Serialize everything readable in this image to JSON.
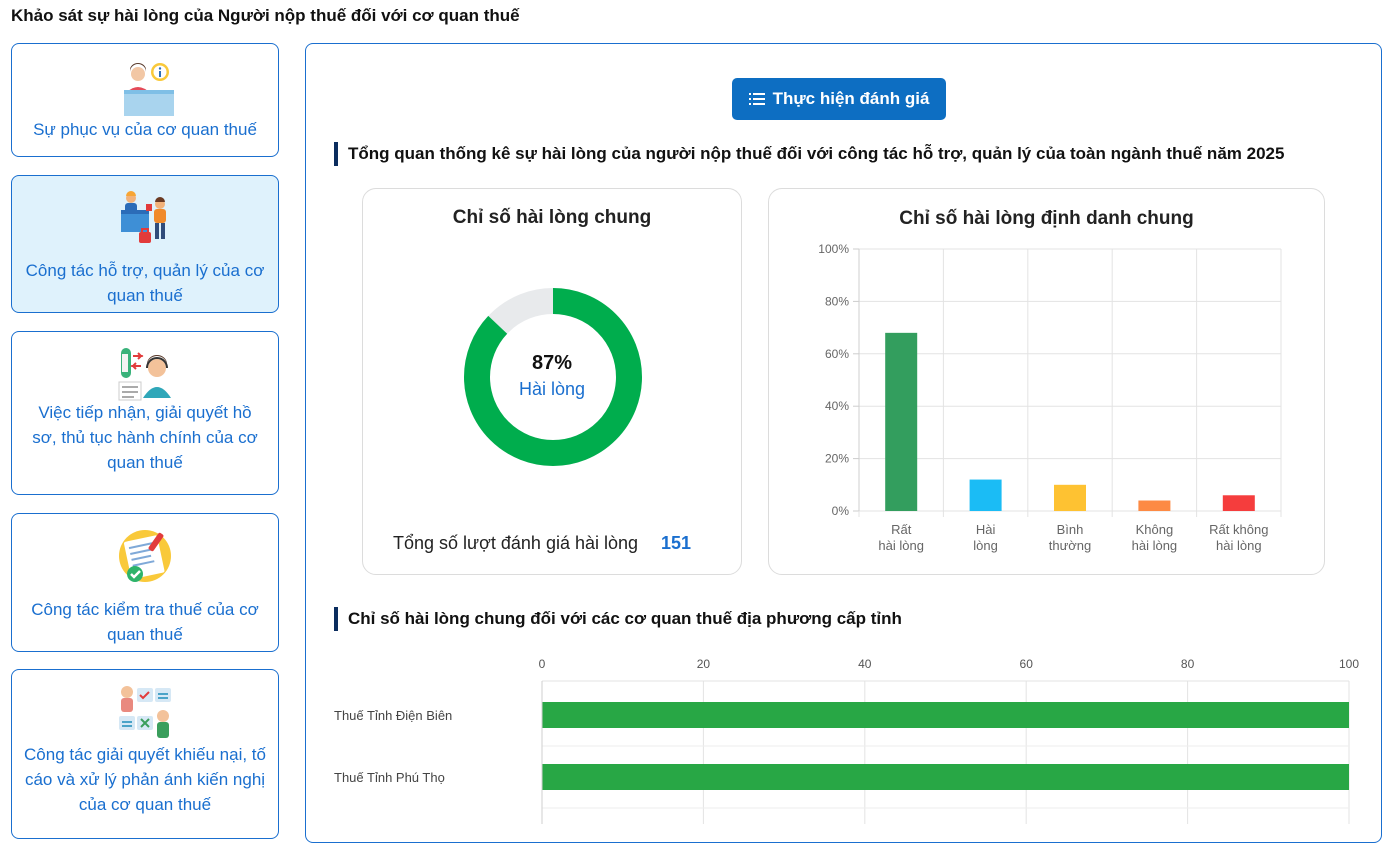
{
  "page": {
    "title": "Khảo sát sự hài lòng của Người nộp thuế đối với cơ quan thuế"
  },
  "colors": {
    "accent": "#1a6fcf",
    "button": "#0d6ec2",
    "donut_green": "#00ad4d",
    "donut_rest": "#e8eaec"
  },
  "sidebar": {
    "items": [
      {
        "label": "Sự phục vụ của cơ quan thuế",
        "icon": "service-desk-icon",
        "active": false
      },
      {
        "label": "Công tác hỗ trợ, quản lý của cơ quan thuế",
        "icon": "support-desk-icon",
        "active": true
      },
      {
        "label": "Việc tiếp nhận, giải quyết hồ sơ, thủ tục hành chính của cơ quan thuế",
        "icon": "call-center-icon",
        "active": false
      },
      {
        "label": "Công tác kiểm tra thuế của cơ quan thuế",
        "icon": "checklist-icon",
        "active": false
      },
      {
        "label": "Công tác giải quyết khiếu nại, tố cáo và xử lý phản ánh kiến nghị của cơ quan thuế",
        "icon": "complaint-icon",
        "active": false
      }
    ]
  },
  "main": {
    "eval_button": "Thực hiện đánh giá",
    "eval_button_icon": "list-icon",
    "overview_title": "Tổng quan thống kê sự hài lòng của người nộp thuế đối với công tác hỗ trợ, quản lý của toàn ngành thuế năm 2025",
    "donut": {
      "title": "Chỉ số hài lòng chung",
      "percent_text": "87%",
      "percent_value": 87,
      "status": "Hài lòng",
      "total_label": "Tổng số lượt đánh giá hài lòng",
      "total_value": "151"
    },
    "bar_panel_title": "Chỉ số hài lòng định danh chung",
    "province_title": "Chỉ số hài lòng chung đối với các cơ quan thuế địa phương cấp tỉnh"
  },
  "chart_data": [
    {
      "type": "bar",
      "title": "Chỉ số hài lòng định danh chung",
      "categories": [
        [
          "Rất",
          "hài lòng"
        ],
        [
          "Hài",
          "lòng"
        ],
        [
          "Bình",
          "thường"
        ],
        [
          "Không",
          "hài lòng"
        ],
        [
          "Rất không",
          "hài lòng"
        ]
      ],
      "values": [
        68,
        12,
        10,
        4,
        6
      ],
      "colors": [
        "#339e5e",
        "#1bbcf5",
        "#fec232",
        "#fd8a44",
        "#f53d3d"
      ],
      "yticks": [
        "0%",
        "20%",
        "40%",
        "60%",
        "80%",
        "100%"
      ],
      "ylim": [
        0,
        100
      ],
      "grid": true
    },
    {
      "type": "bar",
      "orientation": "horizontal",
      "title": "Chỉ số hài lòng chung đối với các cơ quan thuế địa phương cấp tỉnh",
      "categories": [
        "Thuế Tỉnh Điện Biên",
        "Thuế Tỉnh Phú Thọ"
      ],
      "values": [
        100,
        100
      ],
      "color": "#28a745",
      "xticks": [
        "0",
        "20",
        "40",
        "60",
        "80",
        "100"
      ],
      "xlim": [
        0,
        100
      ],
      "grid": true
    }
  ]
}
